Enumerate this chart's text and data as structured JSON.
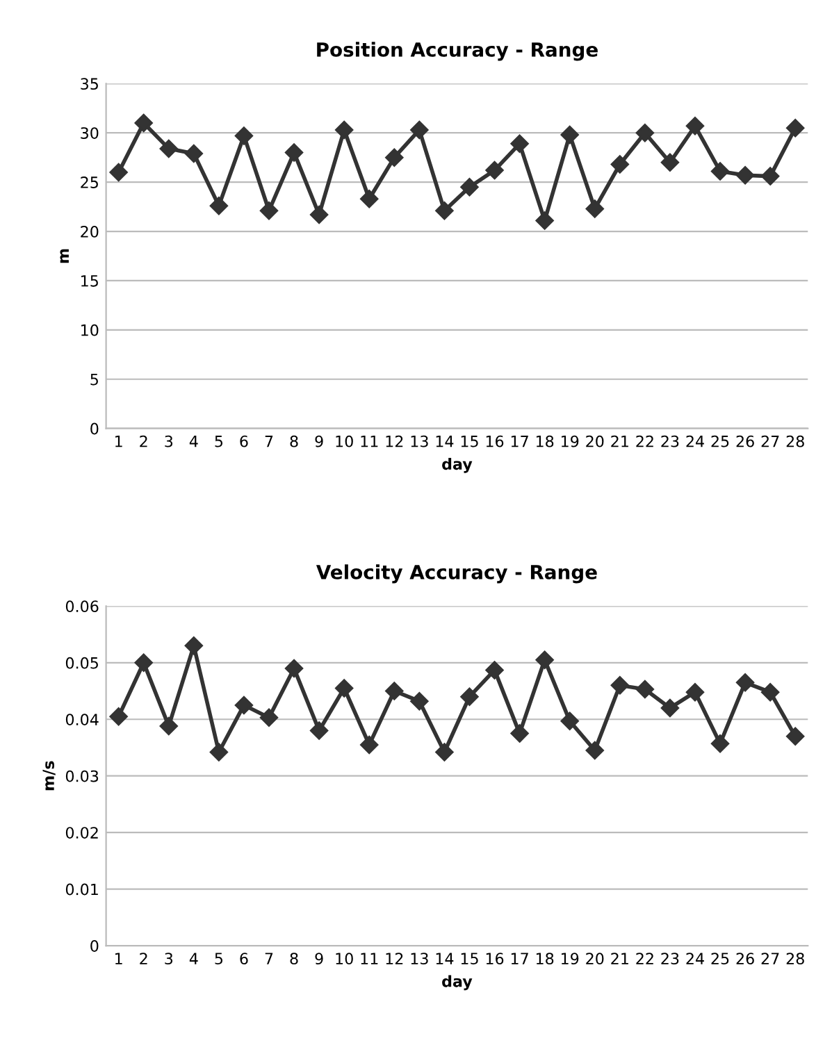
{
  "chart_data": [
    {
      "type": "line",
      "title": "Position Accuracy - Range",
      "xlabel": "day",
      "ylabel": "m",
      "categories": [
        "1",
        "2",
        "3",
        "4",
        "5",
        "6",
        "7",
        "8",
        "9",
        "10",
        "11",
        "12",
        "13",
        "14",
        "15",
        "16",
        "17",
        "18",
        "19",
        "20",
        "21",
        "22",
        "23",
        "24",
        "25",
        "26",
        "27",
        "28"
      ],
      "series": [
        {
          "color": "#333333",
          "values": [
            26.0,
            31.0,
            28.4,
            27.9,
            22.6,
            29.7,
            22.1,
            28.0,
            21.7,
            30.3,
            23.3,
            27.5,
            30.3,
            22.1,
            24.5,
            26.2,
            28.9,
            21.1,
            29.8,
            22.3,
            26.8,
            30.0,
            27.0,
            30.7,
            26.1,
            25.7,
            25.6,
            30.5
          ]
        }
      ],
      "ylim": [
        0,
        35
      ],
      "yticks": [
        0,
        5,
        10,
        15,
        20,
        25,
        30,
        35
      ],
      "grid": "y",
      "marker": "diamond",
      "line_style": "solid"
    },
    {
      "type": "line",
      "title": "Velocity Accuracy - Range",
      "xlabel": "day",
      "ylabel": "m/s",
      "categories": [
        "1",
        "2",
        "3",
        "4",
        "5",
        "6",
        "7",
        "8",
        "9",
        "10",
        "11",
        "12",
        "13",
        "14",
        "15",
        "16",
        "17",
        "18",
        "19",
        "20",
        "21",
        "22",
        "23",
        "24",
        "25",
        "26",
        "27",
        "28"
      ],
      "series": [
        {
          "color": "#333333",
          "values": [
            0.0405,
            0.05,
            0.0388,
            0.053,
            0.0342,
            0.0425,
            0.0403,
            0.049,
            0.038,
            0.0455,
            0.0355,
            0.045,
            0.0432,
            0.0342,
            0.044,
            0.0487,
            0.0375,
            0.0505,
            0.0397,
            0.0345,
            0.046,
            0.0453,
            0.042,
            0.0448,
            0.0357,
            0.0465,
            0.0448,
            0.037
          ]
        }
      ],
      "ylim": [
        0,
        0.06
      ],
      "yticks": [
        0,
        0.01,
        0.02,
        0.03,
        0.04,
        0.05,
        0.06
      ],
      "grid": "y",
      "marker": "diamond",
      "line_style": "solid"
    }
  ]
}
